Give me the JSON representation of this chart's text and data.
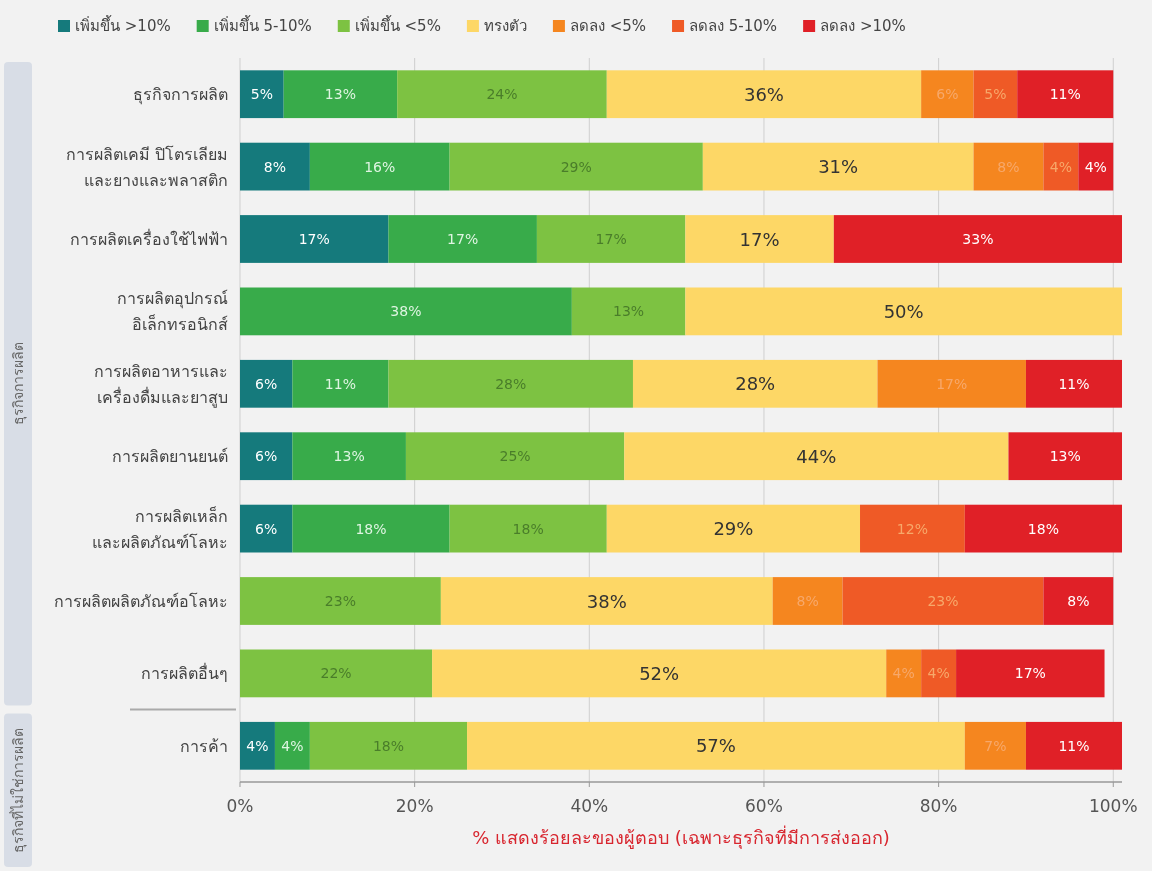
{
  "chart_data": {
    "type": "bar",
    "orientation": "horizontal",
    "stacked": true,
    "xlabel": "% แสดงร้อยละของผู้ตอบ (เฉพาะธุรกิจที่มีการส่งออก)",
    "categories": [
      "ธุรกิจการผลิต",
      "การผลิตเคมี ปิโตรเลียม\nและยางและพลาสติก",
      "การผลิตเครื่องใช้ไฟฟ้า",
      "การผลิตอุปกรณ์\nอิเล็กทรอนิกส์",
      "การผลิตอาหารและ\nเครื่องดื่มและยาสูบ",
      "การผลิตยานยนต์",
      "การผลิตเหล็ก\nและผลิตภัณฑ์โลหะ",
      "การผลิตผลิตภัณฑ์อโลหะ",
      "การผลิตอื่นๆ",
      "การค้า"
    ],
    "series": [
      {
        "name": "เพิ่มขึ้น >10%",
        "color": "#157a7c",
        "values": [
          5,
          8,
          17,
          null,
          6,
          6,
          6,
          null,
          null,
          4
        ],
        "value_labels": [
          "5%",
          "8%",
          "17%",
          null,
          "6%",
          "6%",
          "6%",
          null,
          null,
          "4%"
        ]
      },
      {
        "name": "เพิ่มขึ้น 5-10%",
        "color": "#38ab4a",
        "values": [
          13,
          16,
          17,
          38,
          11,
          13,
          18,
          null,
          null,
          4
        ],
        "value_labels": [
          "13%",
          "16%",
          "17%",
          "38%",
          "11%",
          "13%",
          "18%",
          null,
          null,
          "4%"
        ]
      },
      {
        "name": "เพิ่มขึ้น <5%",
        "color": "#7dc242",
        "values": [
          24,
          29,
          17,
          13,
          28,
          25,
          18,
          23,
          22,
          18
        ],
        "value_labels": [
          "24%",
          "29%",
          "17%",
          "13%",
          "28%",
          "25%",
          "18%",
          "23%",
          "22%",
          "18%"
        ]
      },
      {
        "name": "ทรงตัว",
        "color": "#fdd766",
        "values": [
          36,
          31,
          17,
          50,
          28,
          44,
          29,
          38,
          52,
          57
        ],
        "value_labels": [
          "36%",
          "31%",
          "17%",
          "50%",
          "28%",
          "44%",
          "29%",
          "38%",
          "52%",
          "57%"
        ]
      },
      {
        "name": "ลดลง <5%",
        "color": "#f5861f",
        "values": [
          6,
          8,
          null,
          null,
          17,
          null,
          null,
          8,
          4,
          7
        ],
        "value_labels": [
          "6%",
          "8%",
          null,
          null,
          "17%",
          null,
          null,
          "8%",
          "4%",
          "7%"
        ]
      },
      {
        "name": "ลดลง 5-10%",
        "color": "#ef5a26",
        "values": [
          5,
          4,
          null,
          null,
          null,
          null,
          12,
          23,
          4,
          null
        ],
        "value_labels": [
          "5%",
          "4%",
          null,
          null,
          null,
          null,
          "12%",
          "23%",
          "4%",
          null
        ]
      },
      {
        "name": "ลดลง >10%",
        "color": "#e02027",
        "values": [
          11,
          4,
          33,
          null,
          11,
          13,
          18,
          8,
          17,
          11
        ],
        "value_labels": [
          "11%",
          "4%",
          "33%",
          null,
          "11%",
          "13%",
          "18%",
          "8%",
          "17%",
          "11%"
        ]
      }
    ],
    "xlim": [
      0,
      101
    ],
    "xticks": [
      {
        "value": 0,
        "label": "0%"
      },
      {
        "value": 20,
        "label": "20%"
      },
      {
        "value": 40,
        "label": "40%"
      },
      {
        "value": 60,
        "label": "60%"
      },
      {
        "value": 80,
        "label": "80%"
      },
      {
        "value": 100,
        "label": "100%"
      }
    ],
    "annotations": [
      "ธุรกิจการผลิต",
      "ธุรกิจที่ไม่ใช่การผลิต"
    ],
    "grid": "x",
    "legend": "top"
  }
}
